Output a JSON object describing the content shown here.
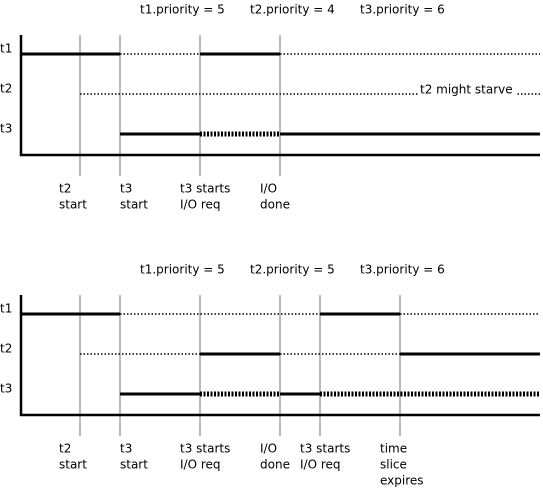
{
  "diagrams": [
    {
      "priorities": [
        "t1.priority = 5",
        "t2.priority = 4",
        "t3.priority = 6"
      ],
      "threads": [
        "t1",
        "t2",
        "t3"
      ],
      "events": [
        {
          "lines": [
            "t2",
            "start"
          ]
        },
        {
          "lines": [
            "t3",
            "start"
          ]
        },
        {
          "lines": [
            "t3 starts",
            "I/O req"
          ]
        },
        {
          "lines": [
            "I/O",
            "done"
          ]
        }
      ],
      "annotation": "t2 might starve"
    },
    {
      "priorities": [
        "t1.priority = 5",
        "t2.priority = 5",
        "t3.priority = 6"
      ],
      "threads": [
        "t1",
        "t2",
        "t3"
      ],
      "events": [
        {
          "lines": [
            "t2",
            "start"
          ]
        },
        {
          "lines": [
            "t3",
            "start"
          ]
        },
        {
          "lines": [
            "t3 starts",
            "I/O req"
          ]
        },
        {
          "lines": [
            "I/O",
            "done"
          ]
        },
        {
          "lines": [
            "t3 starts",
            "I/O req"
          ]
        },
        {
          "lines": [
            "time",
            "slice",
            "expires"
          ]
        }
      ]
    }
  ]
}
